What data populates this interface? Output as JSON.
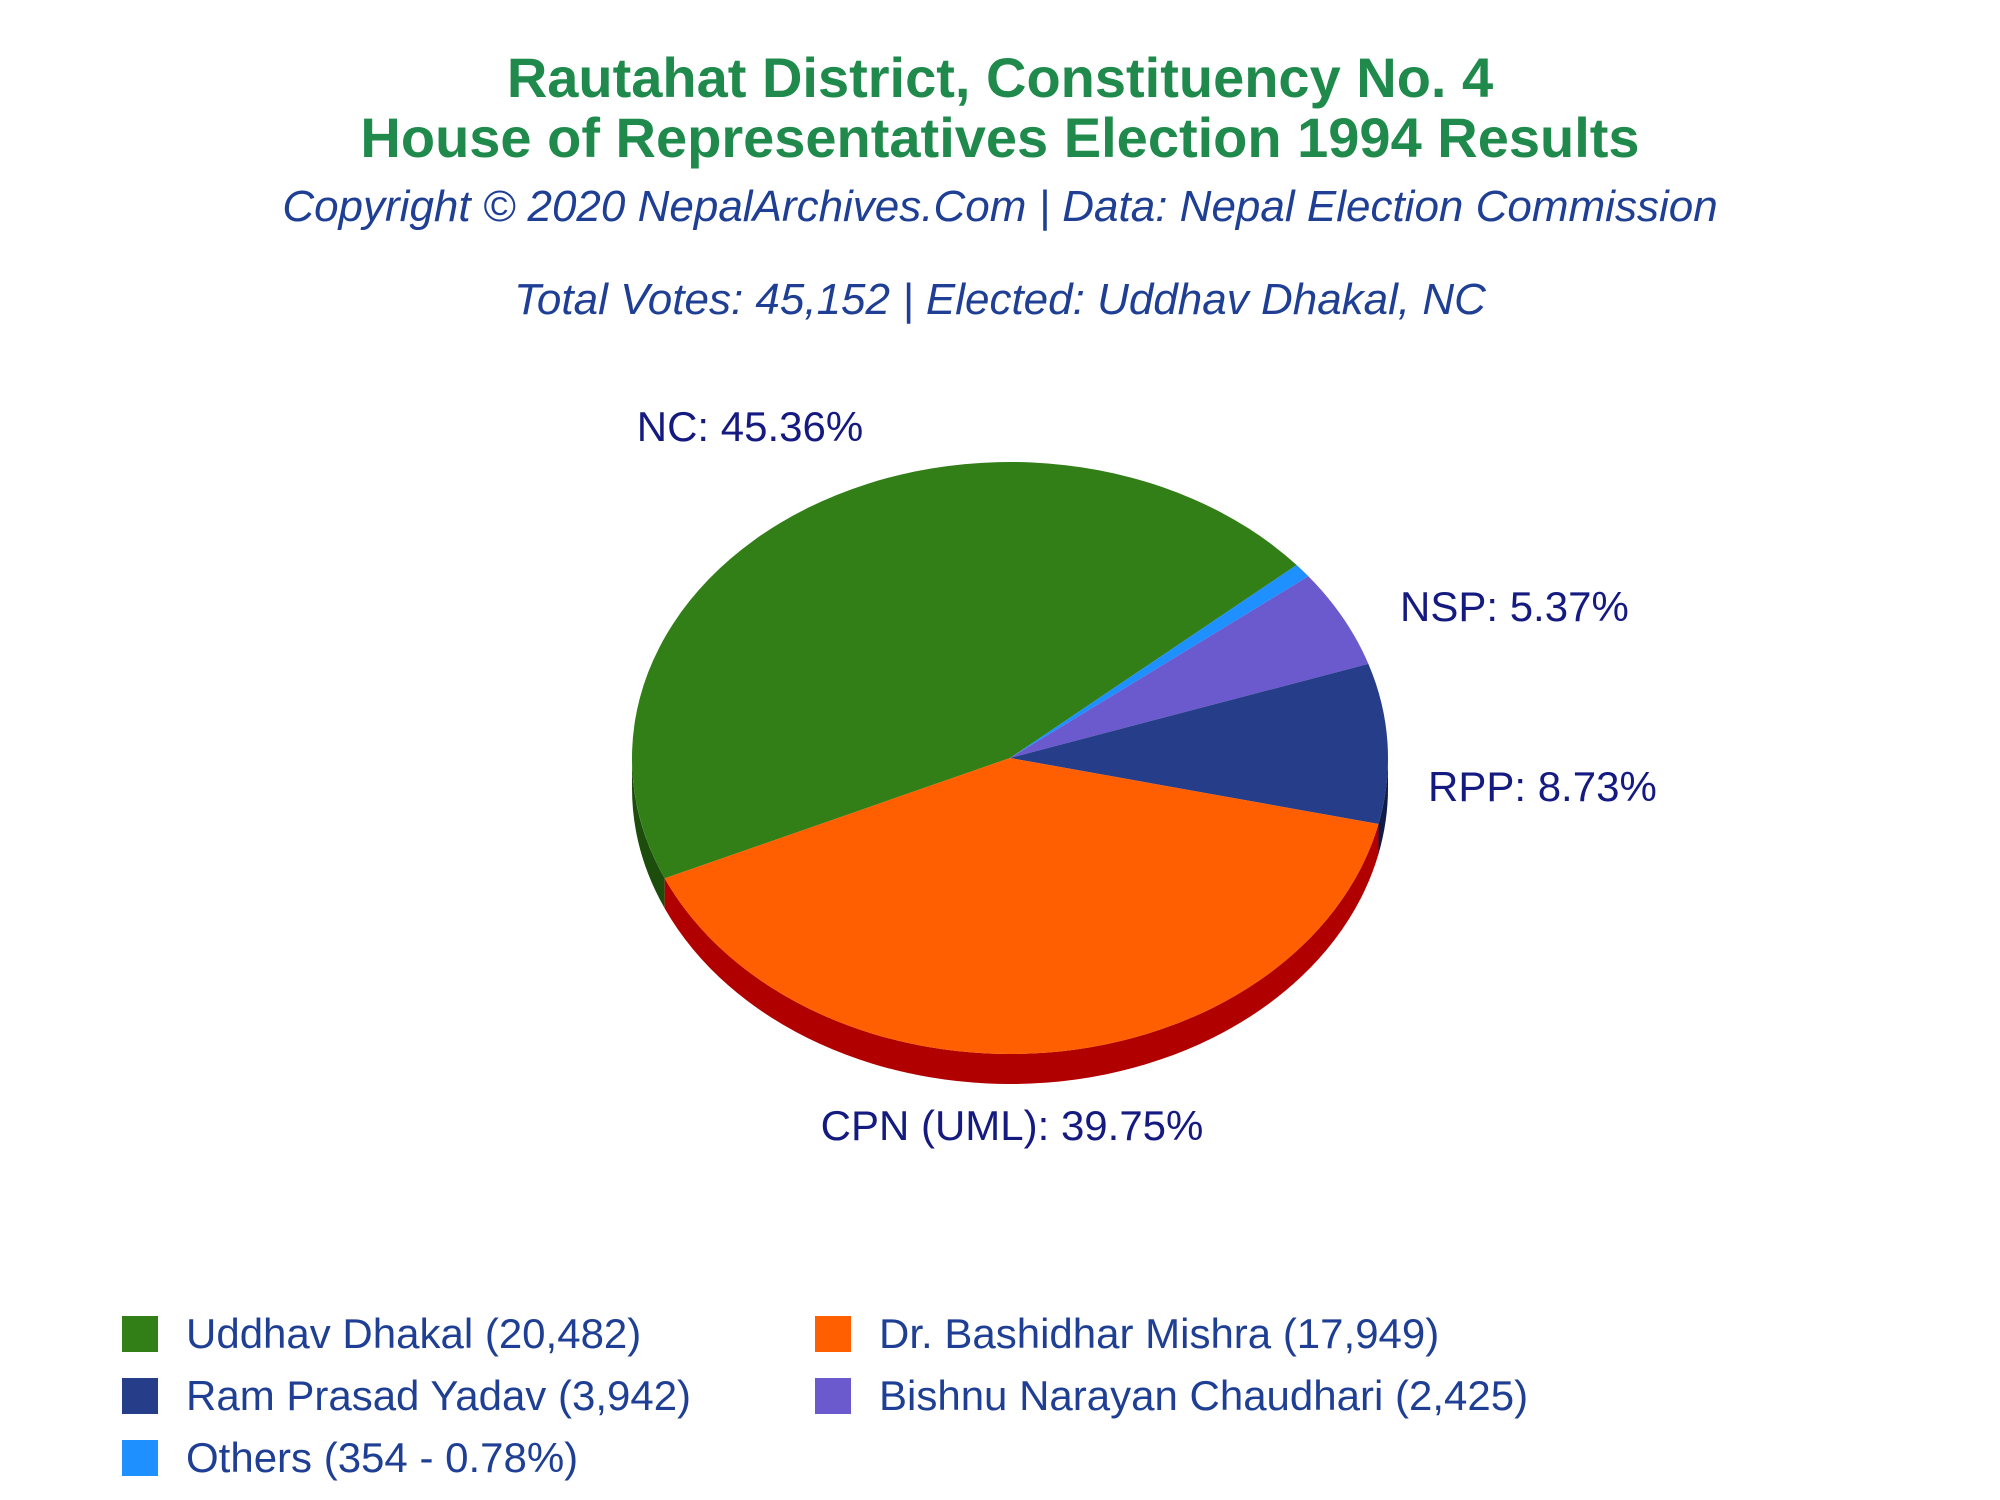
{
  "header": {
    "title_line1": "Rautahat District, Constituency No. 4",
    "title_line2": "House of Representatives Election 1994 Results",
    "copyright": "Copyright © 2020 NepalArchives.Com | Data: Nepal Election Commission",
    "summary": "Total Votes: 45,152 | Elected: Uddhav Dhakal, NC"
  },
  "chart_data": {
    "type": "pie",
    "title": "Rautahat District, Constituency No. 4 House of Representatives Election 1994 Results",
    "total_votes": 45152,
    "slices": [
      {
        "party": "NC",
        "label": "NC: 45.36%",
        "percent": 45.36,
        "candidate": "Uddhav Dhakal",
        "votes": 20482,
        "legend": "Uddhav Dhakal (20,482)",
        "color": "#327f17",
        "side_color": "#1d4d0c"
      },
      {
        "party": "CPN (UML)",
        "label": "CPN (UML): 39.75%",
        "percent": 39.75,
        "candidate": "Dr. Bashidhar Mishra",
        "votes": 17949,
        "legend": "Dr. Bashidhar Mishra (17,949)",
        "color": "#ff5f00",
        "side_color": "#b00000"
      },
      {
        "party": "RPP",
        "label": "RPP: 8.73%",
        "percent": 8.73,
        "candidate": "Ram Prasad Yadav",
        "votes": 3942,
        "legend": "Ram Prasad Yadav (3,942)",
        "color": "#263e89",
        "side_color": "#101c45"
      },
      {
        "party": "NSP",
        "label": "NSP: 5.37%",
        "percent": 5.37,
        "candidate": "Bishnu Narayan Chaudhari",
        "votes": 2425,
        "legend": "Bishnu Narayan Chaudhari (2,425)",
        "color": "#6a5acd",
        "side_color": "#3f338a"
      },
      {
        "party": "Others",
        "label": "",
        "percent": 0.78,
        "candidate": "Others",
        "votes": 354,
        "legend": "Others (354 - 0.78%)",
        "color": "#1e90ff",
        "side_color": "#0f5aa8"
      }
    ],
    "legend_placement": "bottom"
  },
  "style": {
    "title_color": "#1f8a4c",
    "subtitle_color": "#1f3f94",
    "label_color": "#141a80"
  }
}
